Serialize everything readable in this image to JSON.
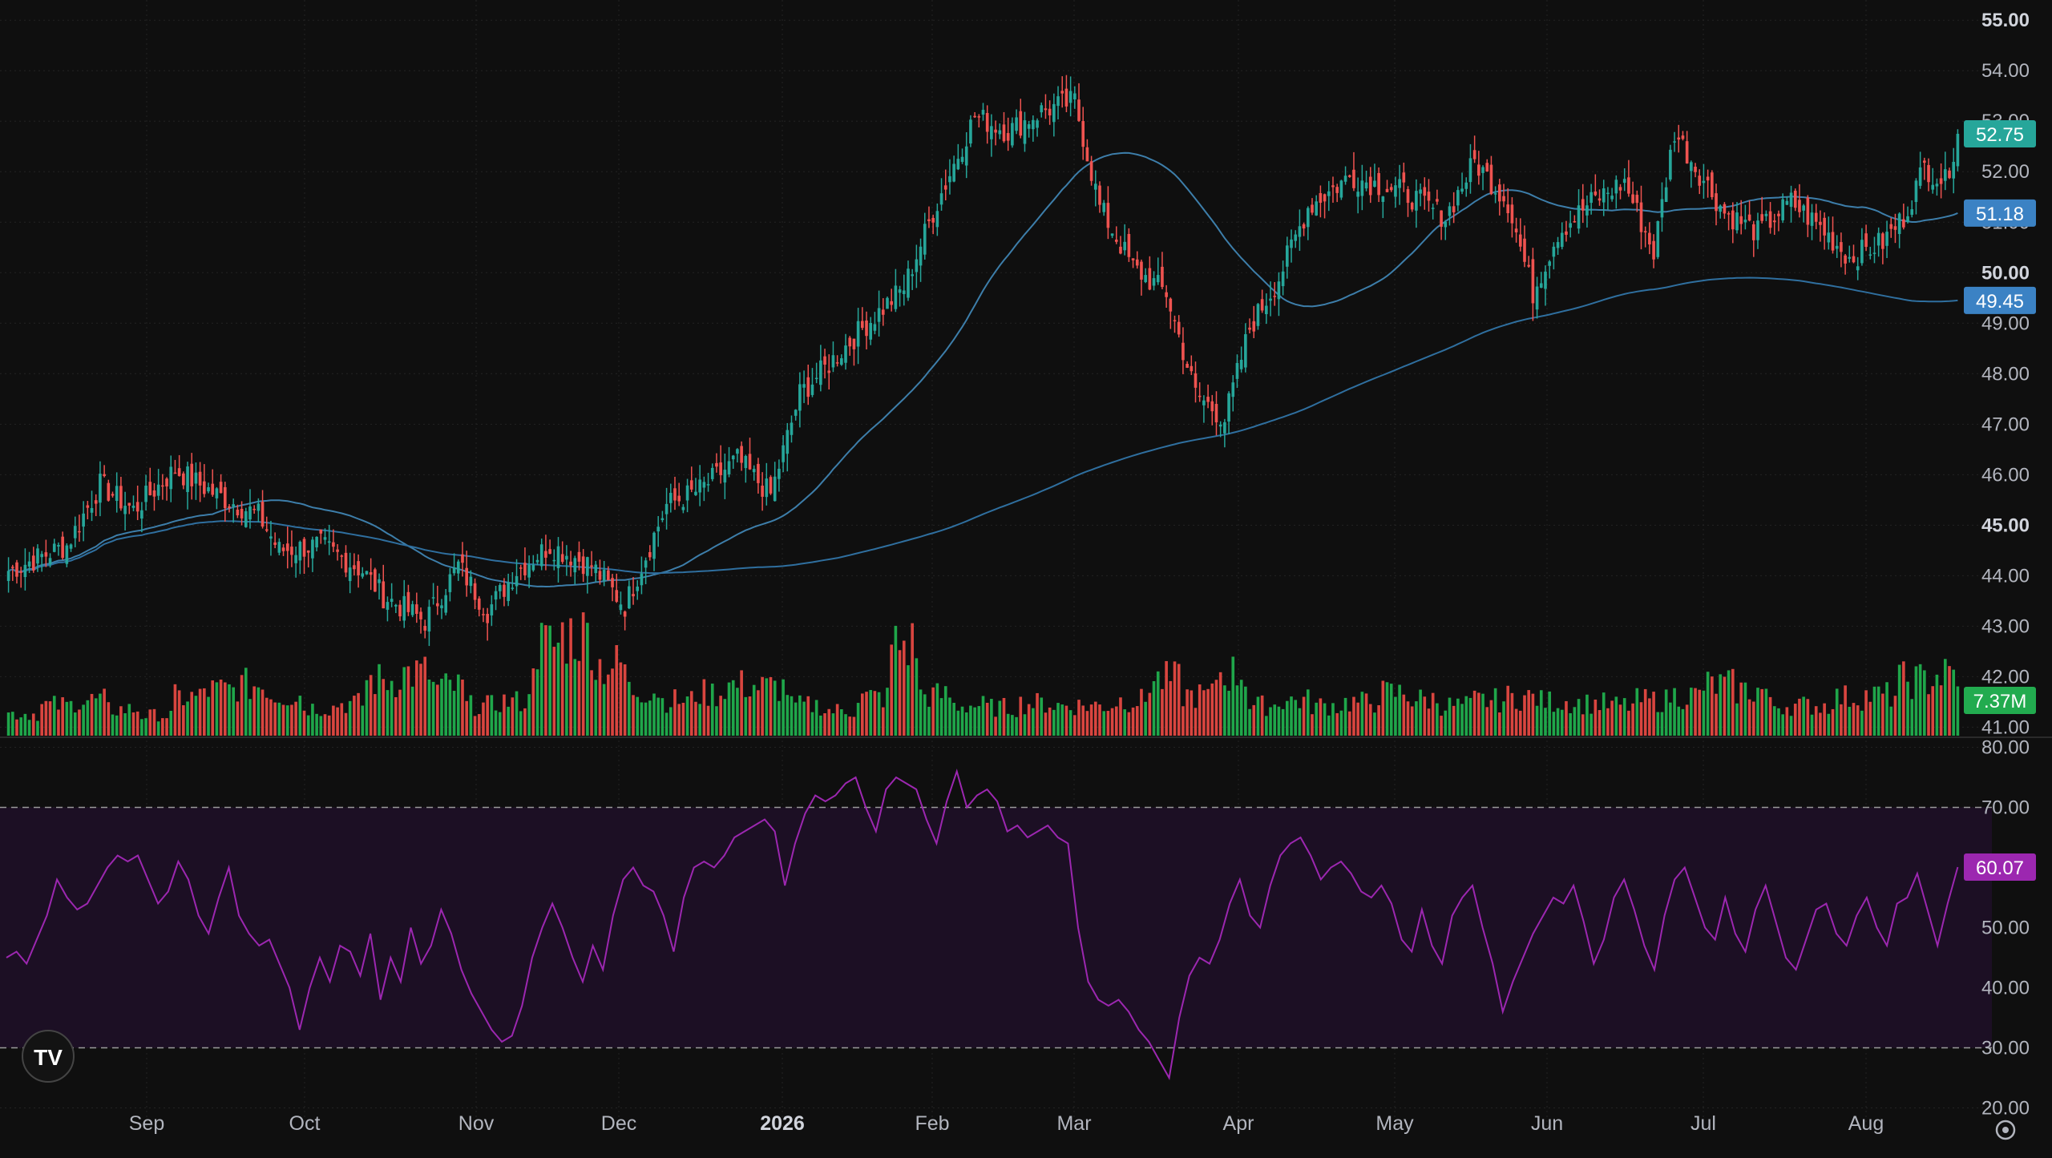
{
  "colors": {
    "background": "#0f0f0f",
    "grid": "#232323",
    "up": "#26a69a",
    "up_volume": "#1fa64a",
    "down": "#ef5350",
    "down_volume": "#d9453f",
    "ma_short": "#3d7eaa",
    "ma_long": "#2f6f9f",
    "rsi_line": "#9c27b0",
    "rsi_band": "#1c0f24",
    "axis_text": "#b2b5be",
    "price_badge": "#26a69a",
    "ma_badge": "#3b82c4",
    "volume_badge": "#22ab4f",
    "rsi_badge": "#9c27b0"
  },
  "logo": {
    "text": "TV",
    "icon": "tradingview-logo-icon"
  },
  "settings": {
    "icon": "gear-icon"
  },
  "chart_data": [
    {
      "type": "candlestick",
      "title": "",
      "x_labels": [
        "Sep",
        "Oct",
        "Nov",
        "Dec",
        "2026",
        "Feb",
        "Mar",
        "Apr",
        "May",
        "Jun",
        "Jul",
        "Aug"
      ],
      "y_ticks": [
        "55.00",
        "54.00",
        "53.00",
        "52.00",
        "51.00",
        "50.00",
        "49.00",
        "48.00",
        "47.00",
        "46.00",
        "45.00",
        "44.00",
        "43.00",
        "42.00",
        "41.00"
      ],
      "ylim": [
        40.8,
        55.4
      ],
      "last_price": "52.75",
      "ma_short_value": "51.18",
      "ma_long_value": "49.45",
      "volume_last": "7.37M",
      "grid": true,
      "close_anchors": [
        [
          0,
          44.1
        ],
        [
          14,
          44.6
        ],
        [
          22,
          45.8
        ],
        [
          30,
          45.3
        ],
        [
          40,
          46.1
        ],
        [
          50,
          45.6
        ],
        [
          60,
          45.2
        ],
        [
          65,
          44.5
        ],
        [
          75,
          44.6
        ],
        [
          85,
          44.1
        ],
        [
          90,
          43.6
        ],
        [
          100,
          43.1
        ],
        [
          108,
          44.2
        ],
        [
          115,
          43.3
        ],
        [
          122,
          44.1
        ],
        [
          130,
          44.6
        ],
        [
          140,
          44.2
        ],
        [
          148,
          43.4
        ],
        [
          158,
          45.4
        ],
        [
          166,
          45.7
        ],
        [
          175,
          46.3
        ],
        [
          183,
          45.6
        ],
        [
          190,
          47.6
        ],
        [
          196,
          48.1
        ],
        [
          205,
          48.9
        ],
        [
          215,
          49.7
        ],
        [
          222,
          51.2
        ],
        [
          232,
          53.1
        ],
        [
          240,
          52.8
        ],
        [
          248,
          53.2
        ],
        [
          256,
          53.4
        ],
        [
          262,
          51.3
        ],
        [
          270,
          50.1
        ],
        [
          278,
          49.6
        ],
        [
          285,
          47.6
        ],
        [
          292,
          47.1
        ],
        [
          298,
          48.9
        ],
        [
          305,
          49.9
        ],
        [
          312,
          51.3
        ],
        [
          322,
          51.9
        ],
        [
          335,
          51.6
        ],
        [
          345,
          51.1
        ],
        [
          352,
          52.2
        ],
        [
          360,
          51.4
        ],
        [
          366,
          49.6
        ],
        [
          372,
          50.8
        ],
        [
          380,
          51.4
        ],
        [
          388,
          51.8
        ],
        [
          395,
          50.4
        ],
        [
          400,
          52.8
        ],
        [
          405,
          52.1
        ],
        [
          412,
          51.2
        ],
        [
          420,
          50.8
        ],
        [
          428,
          51.4
        ],
        [
          435,
          50.9
        ],
        [
          442,
          50.3
        ],
        [
          450,
          50.6
        ],
        [
          455,
          51.1
        ],
        [
          460,
          52.1
        ],
        [
          465,
          51.8
        ],
        [
          468,
          52.75
        ]
      ],
      "volume_pattern": [
        0.22,
        0.3,
        0.35,
        0.26,
        0.2,
        0.38,
        0.45,
        0.5,
        0.4,
        0.28,
        0.32,
        0.55,
        0.62,
        0.48,
        0.3,
        0.34,
        0.9,
        1.0,
        0.7,
        0.45,
        0.35,
        0.42,
        0.5,
        0.48,
        0.3,
        0.25,
        0.38,
        0.9,
        0.4,
        0.3,
        0.28,
        0.32,
        0.3,
        0.3,
        0.35,
        0.55,
        0.4,
        0.62,
        0.3,
        0.35,
        0.3,
        0.33,
        0.42,
        0.36,
        0.3,
        0.35,
        0.38,
        0.34,
        0.32,
        0.3,
        0.35,
        0.4,
        0.5,
        0.45,
        0.3,
        0.3,
        0.38,
        0.4,
        0.55,
        0.6
      ]
    },
    {
      "type": "line",
      "title": "",
      "y_ticks": [
        "80.00",
        "70.00",
        "60.00",
        "50.00",
        "40.00",
        "30.00",
        "20.00"
      ],
      "ylim": [
        19,
        81
      ],
      "overbought": 70,
      "oversold": 30,
      "last_value": "60.07",
      "values": [
        45,
        46,
        44,
        48,
        52,
        58,
        55,
        53,
        54,
        57,
        60,
        62,
        61,
        62,
        58,
        54,
        56,
        61,
        58,
        52,
        49,
        55,
        60,
        52,
        49,
        47,
        48,
        44,
        40,
        33,
        40,
        45,
        41,
        47,
        46,
        42,
        49,
        38,
        45,
        41,
        50,
        44,
        47,
        53,
        49,
        43,
        39,
        36,
        33,
        31,
        32,
        37,
        45,
        50,
        54,
        50,
        45,
        41,
        47,
        43,
        52,
        58,
        60,
        57,
        56,
        52,
        46,
        55,
        60,
        61,
        60,
        62,
        65,
        66,
        67,
        68,
        66,
        57,
        64,
        69,
        72,
        71,
        72,
        74,
        75,
        70,
        66,
        73,
        75,
        74,
        73,
        68,
        64,
        71,
        76,
        70,
        72,
        73,
        71,
        66,
        67,
        65,
        66,
        67,
        65,
        64,
        50,
        41,
        38,
        37,
        38,
        36,
        33,
        31,
        28,
        25,
        35,
        42,
        45,
        44,
        48,
        54,
        58,
        52,
        50,
        57,
        62,
        64,
        65,
        62,
        58,
        60,
        61,
        59,
        56,
        55,
        57,
        54,
        48,
        46,
        53,
        47,
        44,
        52,
        55,
        57,
        50,
        44,
        36,
        41,
        45,
        49,
        52,
        55,
        54,
        57,
        51,
        44,
        48,
        55,
        58,
        53,
        47,
        43,
        52,
        58,
        60,
        55,
        50,
        48,
        55,
        49,
        46,
        53,
        57,
        51,
        45,
        43,
        48,
        53,
        54,
        49,
        47,
        52,
        55,
        50,
        47,
        54,
        55,
        59,
        53,
        47,
        54,
        60
      ]
    }
  ]
}
